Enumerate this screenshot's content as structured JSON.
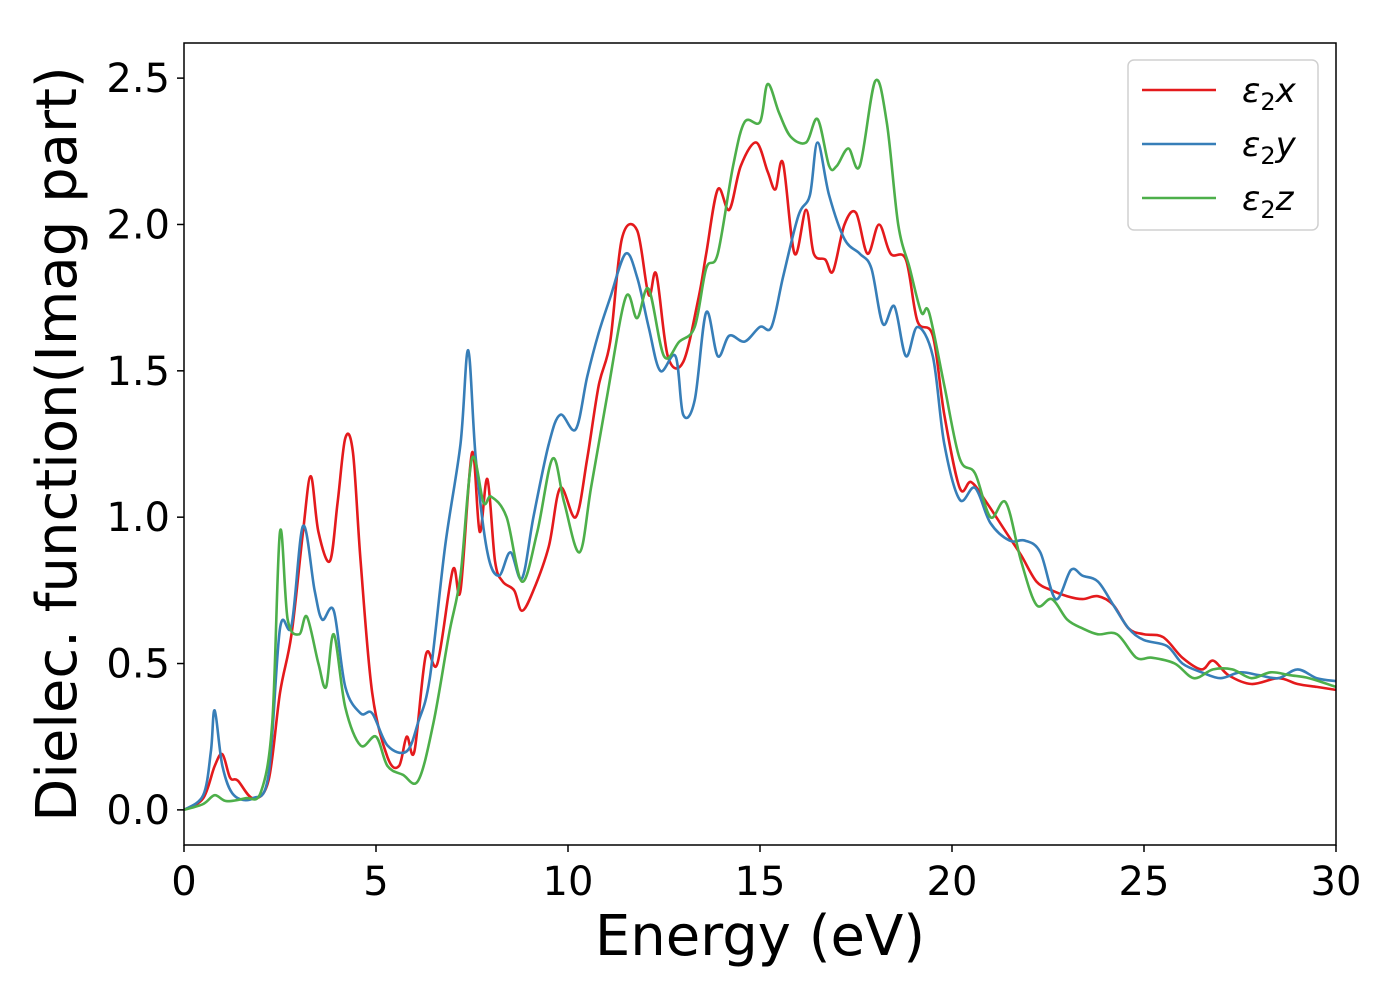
{
  "chart_data": {
    "type": "line",
    "xlabel": "Energy (eV)",
    "ylabel": "Dielec. function(Imag part)",
    "xlim": [
      0,
      30
    ],
    "ylim": [
      -0.12,
      2.62
    ],
    "xticks": [
      "0",
      "5",
      "10",
      "15",
      "20",
      "25",
      "30"
    ],
    "yticks": [
      "0.0",
      "0.5",
      "1.0",
      "1.5",
      "2.0",
      "2.5"
    ],
    "grid": false,
    "legend_position": "top-right",
    "series": [
      {
        "name": "ε₂x",
        "legend_main": "ε",
        "legend_sub": "2",
        "legend_tail": "x",
        "color": "#e41a1c",
        "points": [
          [
            0,
            0
          ],
          [
            0.5,
            0.04
          ],
          [
            0.8,
            0.15
          ],
          [
            1.0,
            0.19
          ],
          [
            1.2,
            0.11
          ],
          [
            1.4,
            0.1
          ],
          [
            1.8,
            0.04
          ],
          [
            2.2,
            0.1
          ],
          [
            2.5,
            0.4
          ],
          [
            2.8,
            0.6
          ],
          [
            3.1,
            0.95
          ],
          [
            3.3,
            1.14
          ],
          [
            3.5,
            0.95
          ],
          [
            3.8,
            0.85
          ],
          [
            4.0,
            1.05
          ],
          [
            4.2,
            1.27
          ],
          [
            4.4,
            1.22
          ],
          [
            4.6,
            0.85
          ],
          [
            4.9,
            0.4
          ],
          [
            5.3,
            0.18
          ],
          [
            5.6,
            0.15
          ],
          [
            5.8,
            0.25
          ],
          [
            6.0,
            0.2
          ],
          [
            6.3,
            0.53
          ],
          [
            6.6,
            0.5
          ],
          [
            7.0,
            0.82
          ],
          [
            7.2,
            0.75
          ],
          [
            7.5,
            1.22
          ],
          [
            7.7,
            0.95
          ],
          [
            7.9,
            1.13
          ],
          [
            8.1,
            0.85
          ],
          [
            8.3,
            0.78
          ],
          [
            8.6,
            0.75
          ],
          [
            8.8,
            0.68
          ],
          [
            9.1,
            0.75
          ],
          [
            9.5,
            0.9
          ],
          [
            9.8,
            1.1
          ],
          [
            10.2,
            1.0
          ],
          [
            10.5,
            1.2
          ],
          [
            10.8,
            1.45
          ],
          [
            11.1,
            1.6
          ],
          [
            11.4,
            1.95
          ],
          [
            11.8,
            1.98
          ],
          [
            12.1,
            1.76
          ],
          [
            12.3,
            1.83
          ],
          [
            12.6,
            1.55
          ],
          [
            13.0,
            1.53
          ],
          [
            13.4,
            1.75
          ],
          [
            13.6,
            1.9
          ],
          [
            13.9,
            2.12
          ],
          [
            14.2,
            2.05
          ],
          [
            14.5,
            2.2
          ],
          [
            14.9,
            2.28
          ],
          [
            15.2,
            2.18
          ],
          [
            15.4,
            2.12
          ],
          [
            15.6,
            2.21
          ],
          [
            15.9,
            1.9
          ],
          [
            16.2,
            2.05
          ],
          [
            16.4,
            1.9
          ],
          [
            16.7,
            1.88
          ],
          [
            16.9,
            1.84
          ],
          [
            17.2,
            2.0
          ],
          [
            17.5,
            2.04
          ],
          [
            17.8,
            1.9
          ],
          [
            18.1,
            2.0
          ],
          [
            18.4,
            1.9
          ],
          [
            18.8,
            1.88
          ],
          [
            19.1,
            1.67
          ],
          [
            19.5,
            1.62
          ],
          [
            19.8,
            1.35
          ],
          [
            20.2,
            1.1
          ],
          [
            20.5,
            1.12
          ],
          [
            20.9,
            1.05
          ],
          [
            21.4,
            0.95
          ],
          [
            21.8,
            0.87
          ],
          [
            22.2,
            0.78
          ],
          [
            22.6,
            0.75
          ],
          [
            23.0,
            0.73
          ],
          [
            23.4,
            0.72
          ],
          [
            23.8,
            0.73
          ],
          [
            24.2,
            0.7
          ],
          [
            24.6,
            0.62
          ],
          [
            25.0,
            0.6
          ],
          [
            25.5,
            0.59
          ],
          [
            26.0,
            0.52
          ],
          [
            26.5,
            0.48
          ],
          [
            26.8,
            0.51
          ],
          [
            27.2,
            0.46
          ],
          [
            27.8,
            0.43
          ],
          [
            28.5,
            0.45
          ],
          [
            29.0,
            0.43
          ],
          [
            29.5,
            0.42
          ],
          [
            30.0,
            0.41
          ]
        ]
      },
      {
        "name": "ε₂y",
        "legend_main": "ε",
        "legend_sub": "2",
        "legend_tail": "y",
        "color": "#377eb8",
        "points": [
          [
            0,
            0
          ],
          [
            0.5,
            0.05
          ],
          [
            0.7,
            0.2
          ],
          [
            0.8,
            0.34
          ],
          [
            1.0,
            0.15
          ],
          [
            1.3,
            0.05
          ],
          [
            1.8,
            0.04
          ],
          [
            2.2,
            0.12
          ],
          [
            2.5,
            0.62
          ],
          [
            2.8,
            0.63
          ],
          [
            3.1,
            0.97
          ],
          [
            3.4,
            0.75
          ],
          [
            3.6,
            0.65
          ],
          [
            3.9,
            0.68
          ],
          [
            4.2,
            0.42
          ],
          [
            4.6,
            0.33
          ],
          [
            4.9,
            0.33
          ],
          [
            5.3,
            0.22
          ],
          [
            5.8,
            0.2
          ],
          [
            6.1,
            0.3
          ],
          [
            6.4,
            0.45
          ],
          [
            6.8,
            0.9
          ],
          [
            7.2,
            1.25
          ],
          [
            7.4,
            1.57
          ],
          [
            7.6,
            1.2
          ],
          [
            7.9,
            0.88
          ],
          [
            8.2,
            0.8
          ],
          [
            8.5,
            0.88
          ],
          [
            8.8,
            0.79
          ],
          [
            9.1,
            1.0
          ],
          [
            9.5,
            1.25
          ],
          [
            9.8,
            1.35
          ],
          [
            10.2,
            1.3
          ],
          [
            10.5,
            1.48
          ],
          [
            10.8,
            1.63
          ],
          [
            11.1,
            1.75
          ],
          [
            11.5,
            1.9
          ],
          [
            11.8,
            1.82
          ],
          [
            12.1,
            1.65
          ],
          [
            12.4,
            1.5
          ],
          [
            12.8,
            1.55
          ],
          [
            13.0,
            1.35
          ],
          [
            13.3,
            1.4
          ],
          [
            13.6,
            1.7
          ],
          [
            13.9,
            1.55
          ],
          [
            14.2,
            1.62
          ],
          [
            14.6,
            1.6
          ],
          [
            15.0,
            1.65
          ],
          [
            15.3,
            1.65
          ],
          [
            15.6,
            1.82
          ],
          [
            16.0,
            2.03
          ],
          [
            16.3,
            2.1
          ],
          [
            16.5,
            2.28
          ],
          [
            16.8,
            2.1
          ],
          [
            17.2,
            1.95
          ],
          [
            17.6,
            1.9
          ],
          [
            17.9,
            1.85
          ],
          [
            18.2,
            1.66
          ],
          [
            18.5,
            1.72
          ],
          [
            18.8,
            1.55
          ],
          [
            19.1,
            1.65
          ],
          [
            19.5,
            1.55
          ],
          [
            19.8,
            1.25
          ],
          [
            20.2,
            1.06
          ],
          [
            20.6,
            1.1
          ],
          [
            21.0,
            0.98
          ],
          [
            21.5,
            0.92
          ],
          [
            21.9,
            0.92
          ],
          [
            22.3,
            0.88
          ],
          [
            22.7,
            0.72
          ],
          [
            23.1,
            0.82
          ],
          [
            23.4,
            0.8
          ],
          [
            23.8,
            0.78
          ],
          [
            24.2,
            0.7
          ],
          [
            24.6,
            0.62
          ],
          [
            25.0,
            0.58
          ],
          [
            25.6,
            0.56
          ],
          [
            26.0,
            0.5
          ],
          [
            26.5,
            0.47
          ],
          [
            27.0,
            0.45
          ],
          [
            27.5,
            0.47
          ],
          [
            28.0,
            0.46
          ],
          [
            28.5,
            0.45
          ],
          [
            29.0,
            0.48
          ],
          [
            29.5,
            0.45
          ],
          [
            30.0,
            0.44
          ]
        ]
      },
      {
        "name": "ε₂z",
        "legend_main": "ε",
        "legend_sub": "2",
        "legend_tail": "z",
        "color": "#4daf4a",
        "points": [
          [
            0,
            0
          ],
          [
            0.5,
            0.02
          ],
          [
            0.8,
            0.05
          ],
          [
            1.1,
            0.03
          ],
          [
            1.6,
            0.04
          ],
          [
            2.0,
            0.06
          ],
          [
            2.3,
            0.3
          ],
          [
            2.5,
            0.95
          ],
          [
            2.7,
            0.65
          ],
          [
            3.0,
            0.6
          ],
          [
            3.2,
            0.66
          ],
          [
            3.5,
            0.5
          ],
          [
            3.7,
            0.42
          ],
          [
            3.9,
            0.6
          ],
          [
            4.2,
            0.35
          ],
          [
            4.6,
            0.22
          ],
          [
            5.0,
            0.25
          ],
          [
            5.3,
            0.15
          ],
          [
            5.7,
            0.12
          ],
          [
            6.1,
            0.1
          ],
          [
            6.5,
            0.3
          ],
          [
            6.9,
            0.6
          ],
          [
            7.2,
            0.8
          ],
          [
            7.5,
            1.2
          ],
          [
            7.8,
            1.05
          ],
          [
            8.0,
            1.07
          ],
          [
            8.4,
            1.0
          ],
          [
            8.8,
            0.78
          ],
          [
            9.2,
            0.95
          ],
          [
            9.6,
            1.2
          ],
          [
            9.9,
            1.05
          ],
          [
            10.3,
            0.88
          ],
          [
            10.6,
            1.1
          ],
          [
            11.0,
            1.4
          ],
          [
            11.5,
            1.75
          ],
          [
            11.8,
            1.68
          ],
          [
            12.1,
            1.78
          ],
          [
            12.5,
            1.55
          ],
          [
            12.9,
            1.6
          ],
          [
            13.3,
            1.65
          ],
          [
            13.6,
            1.85
          ],
          [
            13.9,
            1.9
          ],
          [
            14.3,
            2.2
          ],
          [
            14.6,
            2.35
          ],
          [
            15.0,
            2.35
          ],
          [
            15.2,
            2.48
          ],
          [
            15.5,
            2.38
          ],
          [
            15.8,
            2.3
          ],
          [
            16.2,
            2.28
          ],
          [
            16.5,
            2.36
          ],
          [
            16.8,
            2.2
          ],
          [
            17.0,
            2.2
          ],
          [
            17.3,
            2.26
          ],
          [
            17.6,
            2.2
          ],
          [
            18.0,
            2.49
          ],
          [
            18.3,
            2.35
          ],
          [
            18.6,
            2.0
          ],
          [
            18.9,
            1.85
          ],
          [
            19.2,
            1.7
          ],
          [
            19.4,
            1.7
          ],
          [
            19.8,
            1.45
          ],
          [
            20.2,
            1.2
          ],
          [
            20.6,
            1.15
          ],
          [
            21.0,
            1.0
          ],
          [
            21.4,
            1.05
          ],
          [
            21.8,
            0.85
          ],
          [
            22.2,
            0.7
          ],
          [
            22.6,
            0.72
          ],
          [
            23.0,
            0.65
          ],
          [
            23.4,
            0.62
          ],
          [
            23.8,
            0.6
          ],
          [
            24.3,
            0.6
          ],
          [
            24.8,
            0.52
          ],
          [
            25.2,
            0.52
          ],
          [
            25.8,
            0.5
          ],
          [
            26.3,
            0.45
          ],
          [
            26.8,
            0.48
          ],
          [
            27.3,
            0.48
          ],
          [
            27.8,
            0.45
          ],
          [
            28.3,
            0.47
          ],
          [
            28.8,
            0.46
          ],
          [
            29.3,
            0.45
          ],
          [
            30.0,
            0.42
          ]
        ]
      }
    ]
  }
}
